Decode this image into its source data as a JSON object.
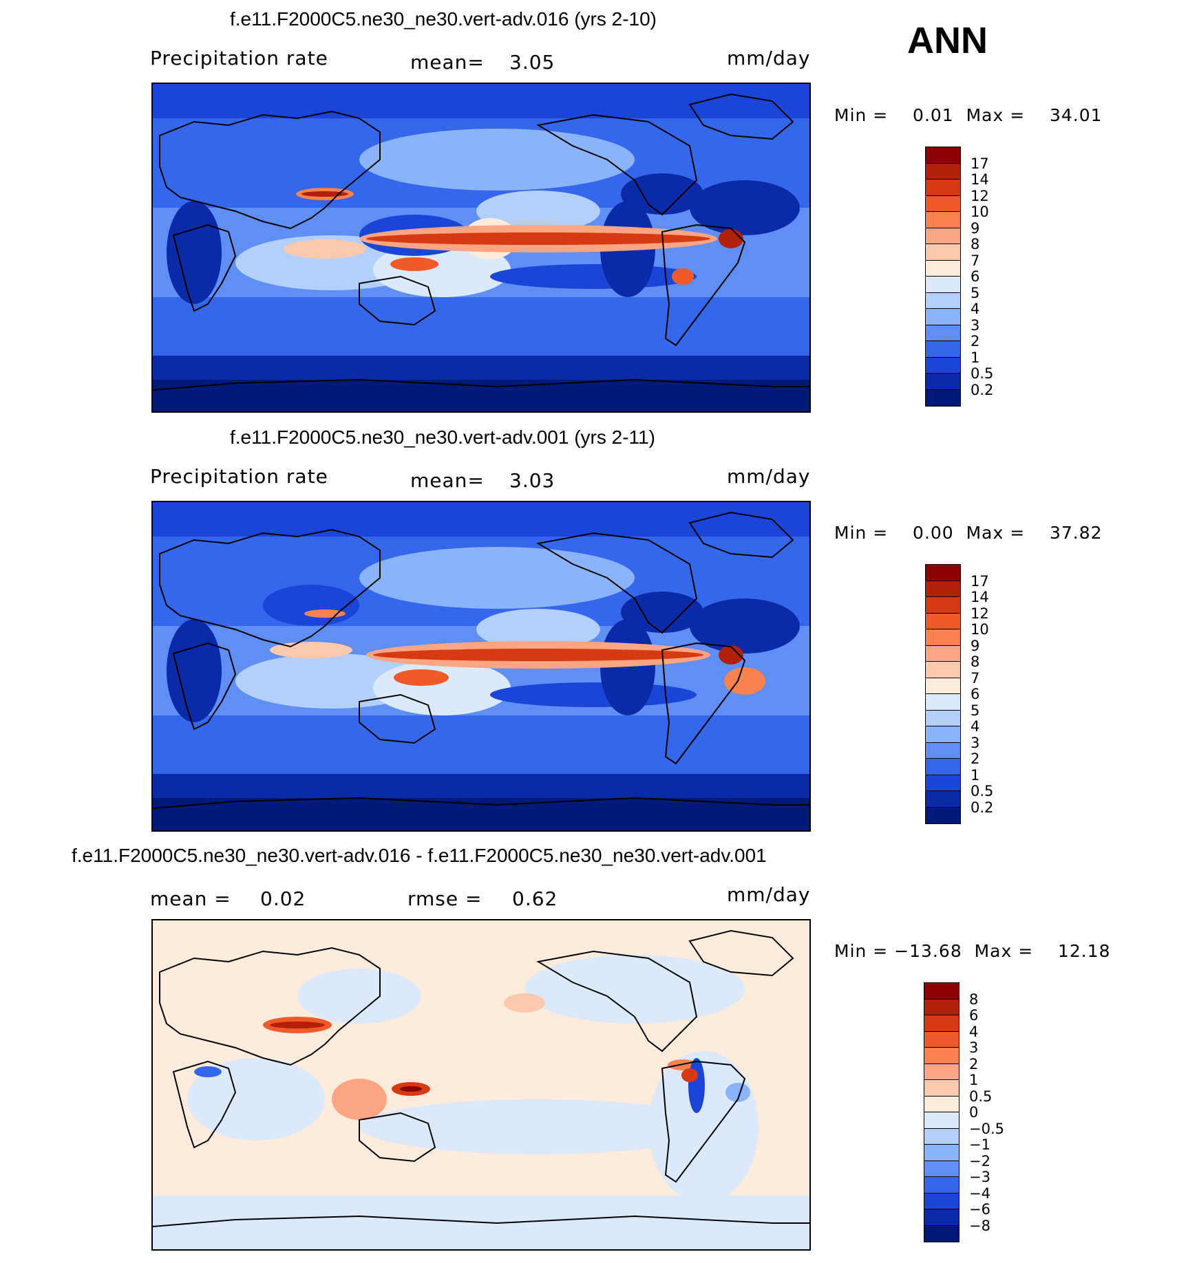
{
  "season": "ANN",
  "panels": [
    {
      "title": "f.e11.F2000C5.ne30_ne30.vert-adv.016 (yrs 2-10)",
      "left_label": "Precipitation rate",
      "stat1_label": "mean=",
      "stat1_value": "3.05",
      "stat2_label": "",
      "stat2_value": "",
      "units": "mm/day",
      "min_max": "Min =    0.01  Max =    34.01",
      "type": "abs"
    },
    {
      "title": "f.e11.F2000C5.ne30_ne30.vert-adv.001 (yrs 2-11)",
      "left_label": "Precipitation rate",
      "stat1_label": "mean=",
      "stat1_value": "3.03",
      "stat2_label": "",
      "stat2_value": "",
      "units": "mm/day",
      "min_max": "Min =    0.00  Max =    37.82",
      "type": "abs"
    },
    {
      "title": "f.e11.F2000C5.ne30_ne30.vert-adv.016 - f.e11.F2000C5.ne30_ne30.vert-adv.001",
      "left_label": "mean =",
      "stat1_label": "0.02",
      "stat1_value": "",
      "stat2_label": "rmse =",
      "stat2_value": "0.62",
      "units": "mm/day",
      "min_max": "Min = −13.68  Max =    12.18",
      "type": "diff"
    }
  ],
  "colorbars": {
    "abs": {
      "labels": [
        "17",
        "14",
        "12",
        "10",
        "9",
        "8",
        "7",
        "6",
        "5",
        "4",
        "3",
        "2",
        "1",
        "0.5",
        "0.2"
      ],
      "colors": [
        "#8b0000",
        "#b2200a",
        "#d63a12",
        "#f05a28",
        "#f9824f",
        "#fca582",
        "#fdc9ad",
        "#fdebdc",
        "#dbe9fb",
        "#b3cffb",
        "#8bb3fa",
        "#5f8ef5",
        "#3467ec",
        "#1a45d6",
        "#0b2aa8",
        "#001a78"
      ]
    },
    "diff": {
      "labels": [
        "8",
        "6",
        "4",
        "3",
        "2",
        "1",
        "0.5",
        "0",
        "−0.5",
        "−1",
        "−2",
        "−3",
        "−4",
        "−6",
        "−8"
      ],
      "colors": [
        "#8b0000",
        "#b2200a",
        "#d63a12",
        "#f05a28",
        "#f9824f",
        "#fca582",
        "#fdc9ad",
        "#fdebdc",
        "#dbe9fb",
        "#b3cffb",
        "#8bb3fa",
        "#5f8ef5",
        "#3467ec",
        "#1a45d6",
        "#0b2aa8",
        "#001a78"
      ]
    }
  }
}
